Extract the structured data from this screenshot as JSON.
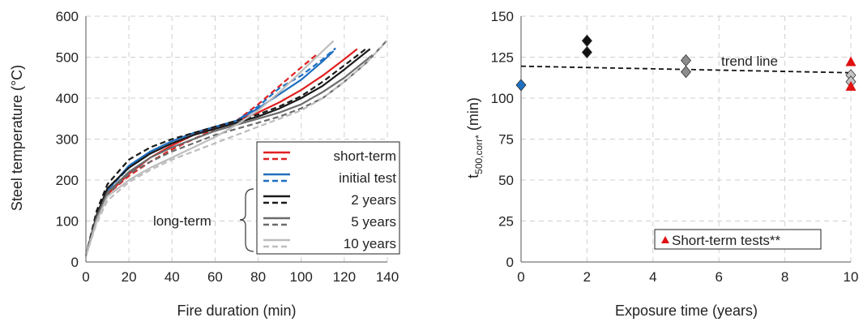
{
  "chart_data": [
    {
      "type": "line",
      "xlabel": "Fire duration (min)",
      "ylabel": "Steel temperature (°C)",
      "xlim": [
        0,
        140
      ],
      "ylim": [
        0,
        600
      ],
      "xticks": [
        0,
        20,
        40,
        60,
        80,
        100,
        120,
        140
      ],
      "yticks": [
        0,
        100,
        200,
        300,
        400,
        500,
        600
      ],
      "grid": true,
      "legend_position": "bottom-right",
      "legend_group_label": "long-term",
      "series": [
        {
          "name": "short-term",
          "color": "#e02020",
          "dash": "solid",
          "x": [
            0,
            5,
            10,
            20,
            30,
            40,
            50,
            60,
            70,
            80,
            90,
            100,
            110,
            120,
            126
          ],
          "y": [
            15,
            100,
            165,
            215,
            255,
            285,
            310,
            330,
            345,
            365,
            390,
            420,
            455,
            495,
            520
          ]
        },
        {
          "name": "",
          "color": "#e02020",
          "dash": "dashed",
          "x": [
            0,
            5,
            10,
            20,
            30,
            40,
            50,
            60,
            70,
            80,
            90,
            100,
            108
          ],
          "y": [
            15,
            100,
            165,
            210,
            245,
            275,
            300,
            325,
            345,
            385,
            430,
            475,
            510
          ]
        },
        {
          "name": "initial test",
          "color": "#1f6fc0",
          "dash": "solid",
          "x": [
            0,
            5,
            10,
            20,
            30,
            40,
            50,
            60,
            70,
            80,
            90,
            100,
            110,
            115
          ],
          "y": [
            15,
            110,
            175,
            235,
            270,
            295,
            315,
            330,
            345,
            375,
            410,
            445,
            490,
            515
          ]
        },
        {
          "name": "",
          "color": "#1f6fc0",
          "dash": "dashed",
          "x": [
            0,
            5,
            10,
            20,
            30,
            40,
            50,
            60,
            70,
            80,
            90,
            100,
            110,
            116
          ],
          "y": [
            15,
            110,
            175,
            230,
            265,
            290,
            310,
            325,
            345,
            380,
            425,
            455,
            495,
            522
          ]
        },
        {
          "name": "2 years",
          "color": "#1a1a1a",
          "dash": "solid",
          "x": [
            0,
            5,
            10,
            20,
            30,
            40,
            50,
            60,
            70,
            80,
            90,
            100,
            110,
            120,
            132
          ],
          "y": [
            15,
            115,
            180,
            230,
            265,
            290,
            310,
            325,
            340,
            355,
            375,
            400,
            430,
            470,
            520
          ]
        },
        {
          "name": "",
          "color": "#1a1a1a",
          "dash": "dashed",
          "x": [
            0,
            5,
            10,
            20,
            30,
            40,
            50,
            60,
            70,
            80,
            90,
            100,
            110,
            120,
            130
          ],
          "y": [
            15,
            125,
            190,
            250,
            280,
            300,
            315,
            330,
            345,
            360,
            380,
            405,
            440,
            480,
            520
          ]
        },
        {
          "name": "5 years",
          "color": "#6b6b6b",
          "dash": "solid",
          "x": [
            0,
            5,
            10,
            20,
            30,
            40,
            50,
            60,
            70,
            80,
            90,
            100,
            110,
            120,
            133
          ],
          "y": [
            15,
            110,
            170,
            220,
            255,
            280,
            300,
            320,
            335,
            350,
            365,
            385,
            415,
            450,
            505
          ]
        },
        {
          "name": "",
          "color": "#6b6b6b",
          "dash": "dashed",
          "x": [
            0,
            5,
            10,
            20,
            30,
            40,
            50,
            60,
            70,
            80,
            90,
            100,
            110,
            120,
            130,
            140
          ],
          "y": [
            15,
            105,
            165,
            215,
            245,
            270,
            290,
            310,
            325,
            340,
            355,
            375,
            400,
            440,
            485,
            542
          ]
        },
        {
          "name": "10 years",
          "color": "#bdbdbd",
          "dash": "solid",
          "x": [
            0,
            5,
            10,
            20,
            30,
            40,
            50,
            60,
            70,
            80,
            90,
            100,
            110,
            115
          ],
          "y": [
            15,
            100,
            160,
            200,
            230,
            255,
            280,
            305,
            335,
            370,
            415,
            465,
            515,
            540
          ]
        },
        {
          "name": "",
          "color": "#bdbdbd",
          "dash": "dashed",
          "x": [
            0,
            5,
            10,
            20,
            30,
            40,
            50,
            60,
            70,
            80,
            90,
            100,
            110,
            120,
            130,
            140
          ],
          "y": [
            15,
            95,
            150,
            195,
            225,
            250,
            270,
            290,
            310,
            330,
            350,
            370,
            400,
            440,
            485,
            540
          ]
        }
      ]
    },
    {
      "type": "scatter",
      "xlabel": "Exposure time (years)",
      "ylabel_main": "t",
      "ylabel_sub": "500,corr*",
      "ylabel_unit": " (min)",
      "xlim": [
        0,
        10
      ],
      "ylim": [
        0,
        150
      ],
      "xticks": [
        0,
        2,
        4,
        6,
        8,
        10
      ],
      "yticks": [
        0,
        25,
        50,
        75,
        100,
        125,
        150
      ],
      "grid": true,
      "trend_line": {
        "label": "trend line",
        "x": [
          0,
          10
        ],
        "y": [
          119.5,
          115.5
        ]
      },
      "legend_position": "bottom-right",
      "legend_label": "Short-term tests**",
      "points": [
        {
          "x": 0,
          "y": 108,
          "color": "#1f6fc0",
          "marker": "diamond"
        },
        {
          "x": 2,
          "y": 135,
          "color": "#111111",
          "marker": "diamond"
        },
        {
          "x": 2,
          "y": 128,
          "color": "#111111",
          "marker": "diamond"
        },
        {
          "x": 5,
          "y": 123,
          "color": "#8c8c8c",
          "marker": "diamond"
        },
        {
          "x": 5,
          "y": 116,
          "color": "#8c8c8c",
          "marker": "diamond"
        },
        {
          "x": 10,
          "y": 114,
          "color": "#c4c4c4",
          "marker": "diamond"
        },
        {
          "x": 10,
          "y": 110,
          "color": "#c4c4c4",
          "marker": "diamond"
        },
        {
          "x": 10,
          "y": 122,
          "color": "#e01010",
          "marker": "triangle"
        },
        {
          "x": 10,
          "y": 107,
          "color": "#e01010",
          "marker": "triangle"
        }
      ]
    }
  ]
}
